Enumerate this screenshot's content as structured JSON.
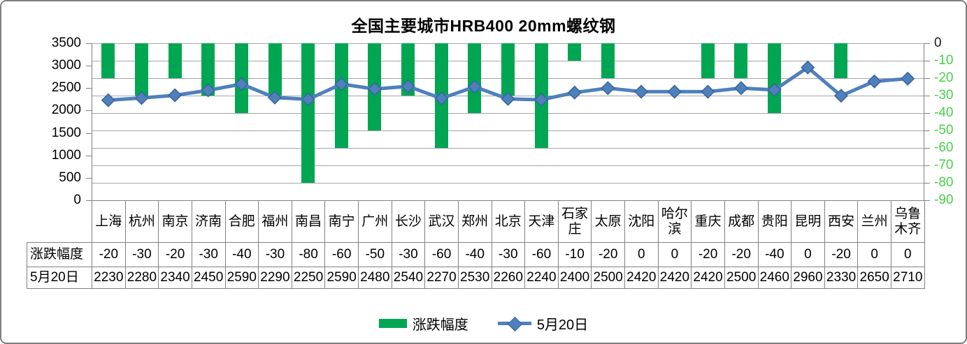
{
  "frame": {
    "background": "#FFFFFF",
    "border_color": "#7F7F7F"
  },
  "chart_data": {
    "type": "bar+line combo",
    "title": "全国主要城市HRB400 20mm螺纹钢",
    "categories": [
      "上海",
      "杭州",
      "南京",
      "济南",
      "合肥",
      "福州",
      "南昌",
      "南宁",
      "广州",
      "长沙",
      "武汉",
      "郑州",
      "北京",
      "天津",
      "石家庄",
      "太原",
      "沈阳",
      "哈尔滨",
      "重庆",
      "成都",
      "贵阳",
      "昆明",
      "西安",
      "兰州",
      "乌鲁木齐"
    ],
    "series": [
      {
        "name": "涨跌幅度",
        "type": "bar",
        "axis": "right",
        "values": [
          -20,
          -30,
          -20,
          -30,
          -40,
          -30,
          -80,
          -60,
          -50,
          -30,
          -60,
          -40,
          -30,
          -60,
          -10,
          -20,
          0,
          0,
          -20,
          -20,
          -40,
          0,
          -20,
          0,
          0
        ]
      },
      {
        "name": "5月20日",
        "type": "line",
        "axis": "left",
        "values": [
          2230,
          2280,
          2340,
          2450,
          2590,
          2290,
          2250,
          2590,
          2480,
          2540,
          2270,
          2530,
          2260,
          2240,
          2400,
          2500,
          2420,
          2420,
          2420,
          2500,
          2460,
          2960,
          2330,
          2650,
          2710
        ]
      }
    ],
    "left_axis": {
      "min": 0,
      "max": 3500,
      "step": 500,
      "tick_labels": [
        "3500",
        "3000",
        "2500",
        "2000",
        "1500",
        "1000",
        "500",
        "0"
      ]
    },
    "right_axis": {
      "min": -90,
      "max": 0,
      "step": 10,
      "tick_labels": [
        "0",
        "-10",
        "-20",
        "-30",
        "-40",
        "-50",
        "-60",
        "-70",
        "-80",
        "-90"
      ]
    },
    "grid": true,
    "legend_position": "bottom"
  },
  "data_table": {
    "row_labels": [
      "涨跌幅度",
      "5月20日"
    ]
  },
  "colors": {
    "bar": "#00A651",
    "line": "#4E80BC",
    "marker_fill": "#4E80BC",
    "marker_border": "#3A649E",
    "right_axis_label": "#47D147",
    "right_axis_zero_label": "#1A1A1A",
    "axis_text": "#000000",
    "gridline": "#A6A6A6",
    "axis_line": "#808080",
    "table_border": "#808080"
  }
}
